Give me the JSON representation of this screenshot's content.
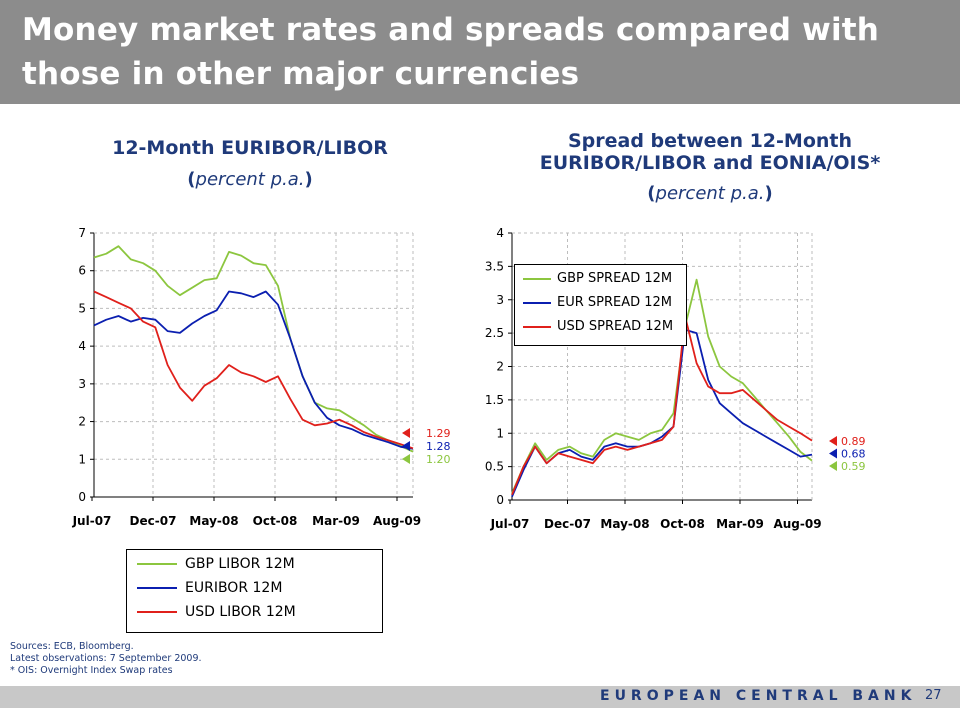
{
  "slide": {
    "title": "Money market rates and spreads compared with those in other major currencies",
    "sources": [
      "Sources: ECB, Bloomberg.",
      "Latest observations: 7 September 2009.",
      "* OIS: Overnight Index Swap rates"
    ],
    "footer": "EUROPEAN CENTRAL BANK",
    "page": "27"
  },
  "left_panel": {
    "title": "12-Month EURIBOR/LIBOR",
    "sub_open": "(",
    "sub_text": "percent p.a.",
    "sub_close": ")"
  },
  "right_panel": {
    "title_line1": "Spread between 12-Month",
    "title_line2": "EURIBOR/LIBOR and EONIA/OIS*",
    "sub_open": "(",
    "sub_text": "percent p.a.",
    "sub_close": ")"
  },
  "colors": {
    "gbp": "#8cc63f",
    "eur": "#0b1fb0",
    "usd": "#e0201b"
  },
  "chart_data": [
    {
      "type": "line",
      "title": "12-Month EURIBOR/LIBOR",
      "ylim": [
        0,
        7
      ],
      "yticks": [
        "0",
        "1",
        "2",
        "3",
        "4",
        "5",
        "6",
        "7"
      ],
      "x_start": "2007-07",
      "x_end": "2009-09",
      "xticks": [
        "Jul-07",
        "Dec-07",
        "May-08",
        "Oct-08",
        "Mar-09",
        "Aug-09"
      ],
      "grid": true,
      "legend_position": "bottom",
      "series": [
        {
          "name": "GBP LIBOR 12M",
          "color": "#8cc63f",
          "last_label": "1.20",
          "points": [
            [
              "2007-07",
              6.35
            ],
            [
              "2007-08",
              6.45
            ],
            [
              "2007-09",
              6.65
            ],
            [
              "2007-10",
              6.3
            ],
            [
              "2007-11",
              6.2
            ],
            [
              "2007-12",
              6.0
            ],
            [
              "2008-01",
              5.6
            ],
            [
              "2008-02",
              5.35
            ],
            [
              "2008-03",
              5.55
            ],
            [
              "2008-04",
              5.75
            ],
            [
              "2008-05",
              5.8
            ],
            [
              "2008-06",
              6.5
            ],
            [
              "2008-07",
              6.4
            ],
            [
              "2008-08",
              6.2
            ],
            [
              "2008-09",
              6.15
            ],
            [
              "2008-10",
              5.6
            ],
            [
              "2008-11",
              4.2
            ],
            [
              "2008-12",
              3.2
            ],
            [
              "2009-01",
              2.5
            ],
            [
              "2009-02",
              2.35
            ],
            [
              "2009-03",
              2.3
            ],
            [
              "2009-04",
              2.1
            ],
            [
              "2009-05",
              1.9
            ],
            [
              "2009-06",
              1.65
            ],
            [
              "2009-07",
              1.5
            ],
            [
              "2009-08",
              1.35
            ],
            [
              "2009-09",
              1.2
            ]
          ]
        },
        {
          "name": "EURIBOR 12M",
          "color": "#0b1fb0",
          "last_label": "1.28",
          "points": [
            [
              "2007-07",
              4.55
            ],
            [
              "2007-08",
              4.7
            ],
            [
              "2007-09",
              4.8
            ],
            [
              "2007-10",
              4.65
            ],
            [
              "2007-11",
              4.75
            ],
            [
              "2007-12",
              4.7
            ],
            [
              "2008-01",
              4.4
            ],
            [
              "2008-02",
              4.35
            ],
            [
              "2008-03",
              4.6
            ],
            [
              "2008-04",
              4.8
            ],
            [
              "2008-05",
              4.95
            ],
            [
              "2008-06",
              5.45
            ],
            [
              "2008-07",
              5.4
            ],
            [
              "2008-08",
              5.3
            ],
            [
              "2008-09",
              5.45
            ],
            [
              "2008-10",
              5.1
            ],
            [
              "2008-11",
              4.2
            ],
            [
              "2008-12",
              3.2
            ],
            [
              "2009-01",
              2.5
            ],
            [
              "2009-02",
              2.1
            ],
            [
              "2009-03",
              1.9
            ],
            [
              "2009-04",
              1.8
            ],
            [
              "2009-05",
              1.65
            ],
            [
              "2009-06",
              1.55
            ],
            [
              "2009-07",
              1.45
            ],
            [
              "2009-08",
              1.33
            ],
            [
              "2009-09",
              1.28
            ]
          ]
        },
        {
          "name": "USD LIBOR 12M",
          "color": "#e0201b",
          "last_label": "1.29",
          "points": [
            [
              "2007-07",
              5.45
            ],
            [
              "2007-08",
              5.3
            ],
            [
              "2007-09",
              5.15
            ],
            [
              "2007-10",
              5.0
            ],
            [
              "2007-11",
              4.65
            ],
            [
              "2007-12",
              4.5
            ],
            [
              "2008-01",
              3.5
            ],
            [
              "2008-02",
              2.9
            ],
            [
              "2008-03",
              2.55
            ],
            [
              "2008-04",
              2.95
            ],
            [
              "2008-05",
              3.15
            ],
            [
              "2008-06",
              3.5
            ],
            [
              "2008-07",
              3.3
            ],
            [
              "2008-08",
              3.2
            ],
            [
              "2008-09",
              3.05
            ],
            [
              "2008-10",
              3.2
            ],
            [
              "2008-11",
              2.6
            ],
            [
              "2008-12",
              2.05
            ],
            [
              "2009-01",
              1.9
            ],
            [
              "2009-02",
              1.95
            ],
            [
              "2009-03",
              2.05
            ],
            [
              "2009-04",
              1.9
            ],
            [
              "2009-05",
              1.72
            ],
            [
              "2009-06",
              1.6
            ],
            [
              "2009-07",
              1.5
            ],
            [
              "2009-08",
              1.4
            ],
            [
              "2009-09",
              1.29
            ]
          ]
        }
      ]
    },
    {
      "type": "line",
      "title": "Spread between 12-Month EURIBOR/LIBOR and EONIA/OIS*",
      "ylim": [
        0,
        4
      ],
      "yticks": [
        "0",
        "0.5",
        "1",
        "1.5",
        "2",
        "2.5",
        "3",
        "3.5",
        "4"
      ],
      "x_start": "2007-07",
      "x_end": "2009-09",
      "xticks": [
        "Jul-07",
        "Dec-07",
        "May-08",
        "Oct-08",
        "Mar-09",
        "Aug-09"
      ],
      "grid": true,
      "legend_position": "top-left",
      "series": [
        {
          "name": "GBP SPREAD 12M",
          "color": "#8cc63f",
          "last_label": "0.59",
          "points": [
            [
              "2007-07",
              0.1
            ],
            [
              "2007-08",
              0.5
            ],
            [
              "2007-09",
              0.85
            ],
            [
              "2007-10",
              0.6
            ],
            [
              "2007-11",
              0.75
            ],
            [
              "2007-12",
              0.8
            ],
            [
              "2008-01",
              0.7
            ],
            [
              "2008-02",
              0.65
            ],
            [
              "2008-03",
              0.9
            ],
            [
              "2008-04",
              1.0
            ],
            [
              "2008-05",
              0.95
            ],
            [
              "2008-06",
              0.9
            ],
            [
              "2008-07",
              1.0
            ],
            [
              "2008-08",
              1.05
            ],
            [
              "2008-09",
              1.3
            ],
            [
              "2008-10",
              2.6
            ],
            [
              "2008-11",
              3.3
            ],
            [
              "2008-12",
              2.45
            ],
            [
              "2009-01",
              2.0
            ],
            [
              "2009-02",
              1.85
            ],
            [
              "2009-03",
              1.75
            ],
            [
              "2009-04",
              1.55
            ],
            [
              "2009-05",
              1.35
            ],
            [
              "2009-06",
              1.15
            ],
            [
              "2009-07",
              0.95
            ],
            [
              "2009-08",
              0.72
            ],
            [
              "2009-09",
              0.59
            ]
          ]
        },
        {
          "name": "EUR SPREAD 12M",
          "color": "#0b1fb0",
          "last_label": "0.68",
          "points": [
            [
              "2007-07",
              0.05
            ],
            [
              "2007-08",
              0.45
            ],
            [
              "2007-09",
              0.8
            ],
            [
              "2007-10",
              0.55
            ],
            [
              "2007-11",
              0.7
            ],
            [
              "2007-12",
              0.75
            ],
            [
              "2008-01",
              0.65
            ],
            [
              "2008-02",
              0.6
            ],
            [
              "2008-03",
              0.8
            ],
            [
              "2008-04",
              0.85
            ],
            [
              "2008-05",
              0.8
            ],
            [
              "2008-06",
              0.8
            ],
            [
              "2008-07",
              0.85
            ],
            [
              "2008-08",
              0.95
            ],
            [
              "2008-09",
              1.1
            ],
            [
              "2008-10",
              2.55
            ],
            [
              "2008-11",
              2.5
            ],
            [
              "2008-12",
              1.8
            ],
            [
              "2009-01",
              1.45
            ],
            [
              "2009-02",
              1.3
            ],
            [
              "2009-03",
              1.15
            ],
            [
              "2009-04",
              1.05
            ],
            [
              "2009-05",
              0.95
            ],
            [
              "2009-06",
              0.85
            ],
            [
              "2009-07",
              0.75
            ],
            [
              "2009-08",
              0.65
            ],
            [
              "2009-09",
              0.68
            ]
          ]
        },
        {
          "name": "USD SPREAD 12M",
          "color": "#e0201b",
          "last_label": "0.89",
          "points": [
            [
              "2007-07",
              0.08
            ],
            [
              "2007-08",
              0.5
            ],
            [
              "2007-09",
              0.8
            ],
            [
              "2007-10",
              0.55
            ],
            [
              "2007-11",
              0.7
            ],
            [
              "2007-12",
              0.65
            ],
            [
              "2008-01",
              0.6
            ],
            [
              "2008-02",
              0.55
            ],
            [
              "2008-03",
              0.75
            ],
            [
              "2008-04",
              0.8
            ],
            [
              "2008-05",
              0.75
            ],
            [
              "2008-06",
              0.8
            ],
            [
              "2008-07",
              0.85
            ],
            [
              "2008-08",
              0.9
            ],
            [
              "2008-09",
              1.1
            ],
            [
              "2008-10",
              2.75
            ],
            [
              "2008-11",
              2.05
            ],
            [
              "2008-12",
              1.7
            ],
            [
              "2009-01",
              1.6
            ],
            [
              "2009-02",
              1.6
            ],
            [
              "2009-03",
              1.65
            ],
            [
              "2009-04",
              1.5
            ],
            [
              "2009-05",
              1.35
            ],
            [
              "2009-06",
              1.2
            ],
            [
              "2009-07",
              1.1
            ],
            [
              "2009-08",
              1.0
            ],
            [
              "2009-09",
              0.89
            ]
          ]
        }
      ]
    }
  ]
}
